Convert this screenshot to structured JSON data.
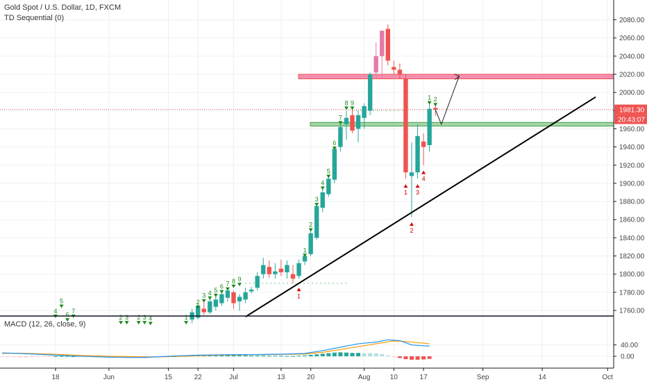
{
  "header": {
    "symbol_title": "Gold Spot / U.S. Dollar, 1D, FXCM",
    "indicator_title": "TD Sequential (0)"
  },
  "macd": {
    "title": "MACD (12, 26, close, 9)",
    "ticks": [
      40,
      0
    ],
    "tick_labels": [
      "40.00",
      "0.00"
    ]
  },
  "price_tags": {
    "last_price": "1981.30",
    "countdown": "20:43:07",
    "last_price_value": 1981.3
  },
  "colors": {
    "up": "#26a69a",
    "down": "#ef5350",
    "pink": "#e57aa8",
    "macd_line": "#2196f3",
    "signal_line": "#ff9800",
    "zone_red": "#f48fb1",
    "zone_green": "#a5d6a7",
    "td_green": "#1b8a1b",
    "td_red": "#d50000"
  },
  "chart_data": {
    "type": "candlestick",
    "y_ticks": [
      1760,
      1780,
      1800,
      1820,
      1840,
      1860,
      1880,
      1900,
      1920,
      1940,
      1960,
      1980,
      2000,
      2020,
      2040,
      2060,
      2080
    ],
    "y_tick_labels": [
      "1760.00",
      "1780.00",
      "1800.00",
      "1820.00",
      "1840.00",
      "1860.00",
      "1880.00",
      "1900.00",
      "1920.00",
      "1940.00",
      "1960.00",
      "1980.00",
      "2000.00",
      "2020.00",
      "2040.00",
      "2060.00",
      "2080.00"
    ],
    "x_labels": [
      {
        "label": "18",
        "bar": 9
      },
      {
        "label": "Jun",
        "bar": 18
      },
      {
        "label": "15",
        "bar": 28
      },
      {
        "label": "22",
        "bar": 33
      },
      {
        "label": "Jul",
        "bar": 39
      },
      {
        "label": "13",
        "bar": 47
      },
      {
        "label": "20",
        "bar": 52
      },
      {
        "label": "Aug",
        "bar": 61
      },
      {
        "label": "10",
        "bar": 66
      },
      {
        "label": "17",
        "bar": 71
      },
      {
        "label": "Sep",
        "bar": 81
      },
      {
        "label": "14",
        "bar": 91
      },
      {
        "label": "Oct",
        "bar": 102
      }
    ],
    "candles": [
      {
        "bar": 32,
        "o": 1750,
        "h": 1762,
        "l": 1746,
        "c": 1758
      },
      {
        "bar": 33,
        "o": 1752,
        "h": 1768,
        "l": 1750,
        "c": 1765
      },
      {
        "bar": 34,
        "o": 1762,
        "h": 1772,
        "l": 1755,
        "c": 1758
      },
      {
        "bar": 35,
        "o": 1758,
        "h": 1775,
        "l": 1756,
        "c": 1770
      },
      {
        "bar": 36,
        "o": 1764,
        "h": 1778,
        "l": 1760,
        "c": 1772
      },
      {
        "bar": 37,
        "o": 1768,
        "h": 1782,
        "l": 1765,
        "c": 1778
      },
      {
        "bar": 38,
        "o": 1774,
        "h": 1785,
        "l": 1770,
        "c": 1782
      },
      {
        "bar": 39,
        "o": 1780,
        "h": 1782,
        "l": 1762,
        "c": 1768
      },
      {
        "bar": 40,
        "o": 1770,
        "h": 1778,
        "l": 1760,
        "c": 1775
      },
      {
        "bar": 41,
        "o": 1772,
        "h": 1785,
        "l": 1768,
        "c": 1780
      },
      {
        "bar": 42,
        "o": 1781,
        "h": 1786,
        "l": 1779,
        "c": 1783
      },
      {
        "bar": 43,
        "o": 1785,
        "h": 1802,
        "l": 1782,
        "c": 1798
      },
      {
        "bar": 44,
        "o": 1800,
        "h": 1818,
        "l": 1795,
        "c": 1810
      },
      {
        "bar": 45,
        "o": 1808,
        "h": 1815,
        "l": 1796,
        "c": 1800
      },
      {
        "bar": 46,
        "o": 1800,
        "h": 1812,
        "l": 1795,
        "c": 1803
      },
      {
        "bar": 47,
        "o": 1806,
        "h": 1816,
        "l": 1798,
        "c": 1802
      },
      {
        "bar": 48,
        "o": 1802,
        "h": 1815,
        "l": 1795,
        "c": 1810
      },
      {
        "bar": 49,
        "o": 1800,
        "h": 1810,
        "l": 1790,
        "c": 1795
      },
      {
        "bar": 50,
        "o": 1798,
        "h": 1816,
        "l": 1795,
        "c": 1812
      },
      {
        "bar": 51,
        "o": 1814,
        "h": 1822,
        "l": 1810,
        "c": 1820
      },
      {
        "bar": 52,
        "o": 1822,
        "h": 1848,
        "l": 1820,
        "c": 1845
      },
      {
        "bar": 53,
        "o": 1840,
        "h": 1878,
        "l": 1838,
        "c": 1875
      },
      {
        "bar": 54,
        "o": 1873,
        "h": 1895,
        "l": 1868,
        "c": 1890
      },
      {
        "bar": 55,
        "o": 1888,
        "h": 1908,
        "l": 1885,
        "c": 1905
      },
      {
        "bar": 56,
        "o": 1904,
        "h": 1940,
        "l": 1900,
        "c": 1938
      },
      {
        "bar": 57,
        "o": 1940,
        "h": 1968,
        "l": 1935,
        "c": 1962
      },
      {
        "bar": 58,
        "o": 1965,
        "h": 1980,
        "l": 1948,
        "c": 1972
      },
      {
        "bar": 59,
        "o": 1975,
        "h": 1984,
        "l": 1955,
        "c": 1958
      },
      {
        "bar": 60,
        "o": 1960,
        "h": 1980,
        "l": 1945,
        "c": 1975
      },
      {
        "bar": 61,
        "o": 1972,
        "h": 1988,
        "l": 1960,
        "c": 1985
      },
      {
        "bar": 62,
        "o": 1980,
        "h": 2022,
        "l": 1975,
        "c": 2020
      },
      {
        "bar": 63,
        "o": 2022,
        "h": 2055,
        "l": 2015,
        "c": 2040
      },
      {
        "bar": 64,
        "o": 2040,
        "h": 2068,
        "l": 2015,
        "c": 2068
      },
      {
        "bar": 65,
        "o": 2070,
        "h": 2075,
        "l": 2030,
        "c": 2035
      },
      {
        "bar": 66,
        "o": 2028,
        "h": 2035,
        "l": 2020,
        "c": 2025
      },
      {
        "bar": 67,
        "o": 2025,
        "h": 2032,
        "l": 2015,
        "c": 2020
      },
      {
        "bar": 68,
        "o": 2015,
        "h": 2020,
        "l": 1905,
        "c": 1912
      },
      {
        "bar": 69,
        "o": 1908,
        "h": 1945,
        "l": 1863,
        "c": 1912
      },
      {
        "bar": 70,
        "o": 1912,
        "h": 1965,
        "l": 1905,
        "c": 1952
      },
      {
        "bar": 71,
        "o": 1946,
        "h": 1955,
        "l": 1920,
        "c": 1940
      },
      {
        "bar": 72,
        "o": 1942,
        "h": 1990,
        "l": 1935,
        "c": 1982
      },
      {
        "bar": 73,
        "o": 1983,
        "h": 1986,
        "l": 1974,
        "c": 1981
      }
    ],
    "td_setup_labels": [
      {
        "bar": 9,
        "text": "4",
        "price": 1757
      },
      {
        "bar": 10,
        "text": "5",
        "price": 1768
      },
      {
        "bar": 11,
        "text": "6",
        "price": 1753
      },
      {
        "bar": 12,
        "text": "7",
        "price": 1757
      },
      {
        "bar": 20,
        "text": "2",
        "price": 1750
      },
      {
        "bar": 21,
        "text": "3",
        "price": 1750
      },
      {
        "bar": 23,
        "text": "2",
        "price": 1750
      },
      {
        "bar": 24,
        "text": "3",
        "price": 1750
      },
      {
        "bar": 25,
        "text": "4",
        "price": 1749
      },
      {
        "bar": 31,
        "text": "1",
        "price": 1750
      },
      {
        "bar": 33,
        "text": "2",
        "price": 1767
      },
      {
        "bar": 34,
        "text": "3",
        "price": 1774
      },
      {
        "bar": 35,
        "text": "4",
        "price": 1777
      },
      {
        "bar": 36,
        "text": "5",
        "price": 1780
      },
      {
        "bar": 37,
        "text": "6",
        "price": 1784
      },
      {
        "bar": 38,
        "text": "7",
        "price": 1787
      },
      {
        "bar": 39,
        "text": "8",
        "price": 1790
      },
      {
        "bar": 40,
        "text": "9",
        "price": 1792
      },
      {
        "bar": 51,
        "text": "1",
        "price": 1824
      },
      {
        "bar": 52,
        "text": "2",
        "price": 1852
      },
      {
        "bar": 53,
        "text": "3",
        "price": 1880
      },
      {
        "bar": 54,
        "text": "4",
        "price": 1898
      },
      {
        "bar": 55,
        "text": "5",
        "price": 1911
      },
      {
        "bar": 56,
        "text": "6",
        "price": 1942
      },
      {
        "bar": 57,
        "text": "7",
        "price": 1970
      },
      {
        "bar": 58,
        "text": "8",
        "price": 1986
      },
      {
        "bar": 59,
        "text": "9",
        "price": 1986
      },
      {
        "bar": 72,
        "text": "1",
        "price": 1992
      },
      {
        "bar": 73,
        "text": "2",
        "price": 1990
      }
    ],
    "td_down_labels": [
      {
        "bar": 50,
        "text": "1",
        "price": 1785
      },
      {
        "bar": 68,
        "text": "1",
        "price": 1899
      },
      {
        "bar": 69,
        "text": "2",
        "price": 1857
      },
      {
        "bar": 70,
        "text": "3",
        "price": 1899
      },
      {
        "bar": 71,
        "text": "4",
        "price": 1914
      }
    ],
    "resistance_zone": [
      2015,
      2020
    ],
    "support_zone": [
      1963,
      1967
    ],
    "trendline": [
      {
        "bar": 41,
        "price": 1753
      },
      {
        "bar": 100,
        "price": 1995
      }
    ],
    "td_dotted_levels": [
      {
        "price": 1790,
        "from_bar": 41,
        "to_bar": 58
      },
      {
        "price": 1980,
        "from_bar": 59,
        "to_bar": 68
      }
    ],
    "projection_path": [
      {
        "bar": 73,
        "price": 1981
      },
      {
        "bar": 74,
        "price": 1965
      },
      {
        "bar": 77,
        "price": 2018
      }
    ],
    "macd_hist": [
      {
        "bar": 0,
        "v": -2
      },
      {
        "bar": 1,
        "v": -3
      },
      {
        "bar": 2,
        "v": -3
      },
      {
        "bar": 3,
        "v": -4
      },
      {
        "bar": 4,
        "v": -4
      },
      {
        "bar": 5,
        "v": -3
      },
      {
        "bar": 6,
        "v": -2
      },
      {
        "bar": 7,
        "v": -2
      },
      {
        "bar": 8,
        "v": -1
      },
      {
        "bar": 9,
        "v": 0
      },
      {
        "bar": 10,
        "v": 1
      },
      {
        "bar": 11,
        "v": 1
      },
      {
        "bar": 12,
        "v": 0
      },
      {
        "bar": 13,
        "v": -1
      },
      {
        "bar": 14,
        "v": -2
      },
      {
        "bar": 15,
        "v": -2
      },
      {
        "bar": 16,
        "v": -3
      },
      {
        "bar": 17,
        "v": -3
      },
      {
        "bar": 18,
        "v": -3
      },
      {
        "bar": 19,
        "v": -3
      },
      {
        "bar": 20,
        "v": -4
      },
      {
        "bar": 21,
        "v": -4
      },
      {
        "bar": 22,
        "v": -5
      },
      {
        "bar": 23,
        "v": -6
      },
      {
        "bar": 24,
        "v": -7
      },
      {
        "bar": 25,
        "v": -5
      },
      {
        "bar": 26,
        "v": -3
      },
      {
        "bar": 27,
        "v": -1
      },
      {
        "bar": 28,
        "v": 0
      },
      {
        "bar": 29,
        "v": 0
      },
      {
        "bar": 30,
        "v": 1
      },
      {
        "bar": 31,
        "v": 1
      },
      {
        "bar": 32,
        "v": 2
      },
      {
        "bar": 33,
        "v": 3
      },
      {
        "bar": 34,
        "v": 4
      },
      {
        "bar": 35,
        "v": 4
      },
      {
        "bar": 36,
        "v": 5
      },
      {
        "bar": 37,
        "v": 5
      },
      {
        "bar": 38,
        "v": 6
      },
      {
        "bar": 39,
        "v": 5
      },
      {
        "bar": 40,
        "v": 4
      },
      {
        "bar": 41,
        "v": 4
      },
      {
        "bar": 42,
        "v": 3
      },
      {
        "bar": 43,
        "v": 3
      },
      {
        "bar": 44,
        "v": 3
      },
      {
        "bar": 45,
        "v": 2
      },
      {
        "bar": 46,
        "v": 2
      },
      {
        "bar": 47,
        "v": 2
      },
      {
        "bar": 48,
        "v": 1
      },
      {
        "bar": 49,
        "v": 1
      },
      {
        "bar": 50,
        "v": 2
      },
      {
        "bar": 51,
        "v": 3
      },
      {
        "bar": 52,
        "v": 5
      },
      {
        "bar": 53,
        "v": 7
      },
      {
        "bar": 54,
        "v": 9
      },
      {
        "bar": 55,
        "v": 11
      },
      {
        "bar": 56,
        "v": 13
      },
      {
        "bar": 57,
        "v": 14
      },
      {
        "bar": 58,
        "v": 13
      },
      {
        "bar": 59,
        "v": 12
      },
      {
        "bar": 60,
        "v": 12
      },
      {
        "bar": 61,
        "v": 11
      },
      {
        "bar": 62,
        "v": 11
      },
      {
        "bar": 63,
        "v": 10
      },
      {
        "bar": 64,
        "v": 8
      },
      {
        "bar": 65,
        "v": 3
      },
      {
        "bar": 66,
        "v": -3
      },
      {
        "bar": 67,
        "v": -6
      },
      {
        "bar": 68,
        "v": -10
      },
      {
        "bar": 69,
        "v": -12
      },
      {
        "bar": 70,
        "v": -12
      },
      {
        "bar": 71,
        "v": -11
      },
      {
        "bar": 72,
        "v": -9
      }
    ],
    "macd_line": [
      [
        0,
        12
      ],
      [
        3,
        10
      ],
      [
        6,
        7
      ],
      [
        9,
        4
      ],
      [
        12,
        1
      ],
      [
        15,
        -1
      ],
      [
        18,
        -3
      ],
      [
        21,
        -4
      ],
      [
        24,
        -4
      ],
      [
        27,
        -1
      ],
      [
        30,
        2
      ],
      [
        33,
        4
      ],
      [
        36,
        5
      ],
      [
        39,
        6
      ],
      [
        42,
        6
      ],
      [
        45,
        7
      ],
      [
        48,
        8
      ],
      [
        51,
        10
      ],
      [
        54,
        20
      ],
      [
        57,
        32
      ],
      [
        60,
        44
      ],
      [
        63,
        50
      ],
      [
        65,
        58
      ],
      [
        67,
        55
      ],
      [
        69,
        40
      ],
      [
        71,
        37
      ],
      [
        72,
        36
      ]
    ],
    "signal_line": [
      [
        0,
        10
      ],
      [
        3,
        11
      ],
      [
        6,
        9
      ],
      [
        9,
        7
      ],
      [
        12,
        4
      ],
      [
        15,
        2
      ],
      [
        18,
        0
      ],
      [
        21,
        -1
      ],
      [
        24,
        -2
      ],
      [
        27,
        -2
      ],
      [
        30,
        0
      ],
      [
        33,
        2
      ],
      [
        36,
        4
      ],
      [
        39,
        5
      ],
      [
        42,
        6
      ],
      [
        45,
        6
      ],
      [
        48,
        7
      ],
      [
        51,
        8
      ],
      [
        54,
        14
      ],
      [
        57,
        24
      ],
      [
        60,
        34
      ],
      [
        63,
        44
      ],
      [
        66,
        54
      ],
      [
        68,
        52
      ],
      [
        70,
        48
      ],
      [
        72,
        44
      ]
    ]
  }
}
